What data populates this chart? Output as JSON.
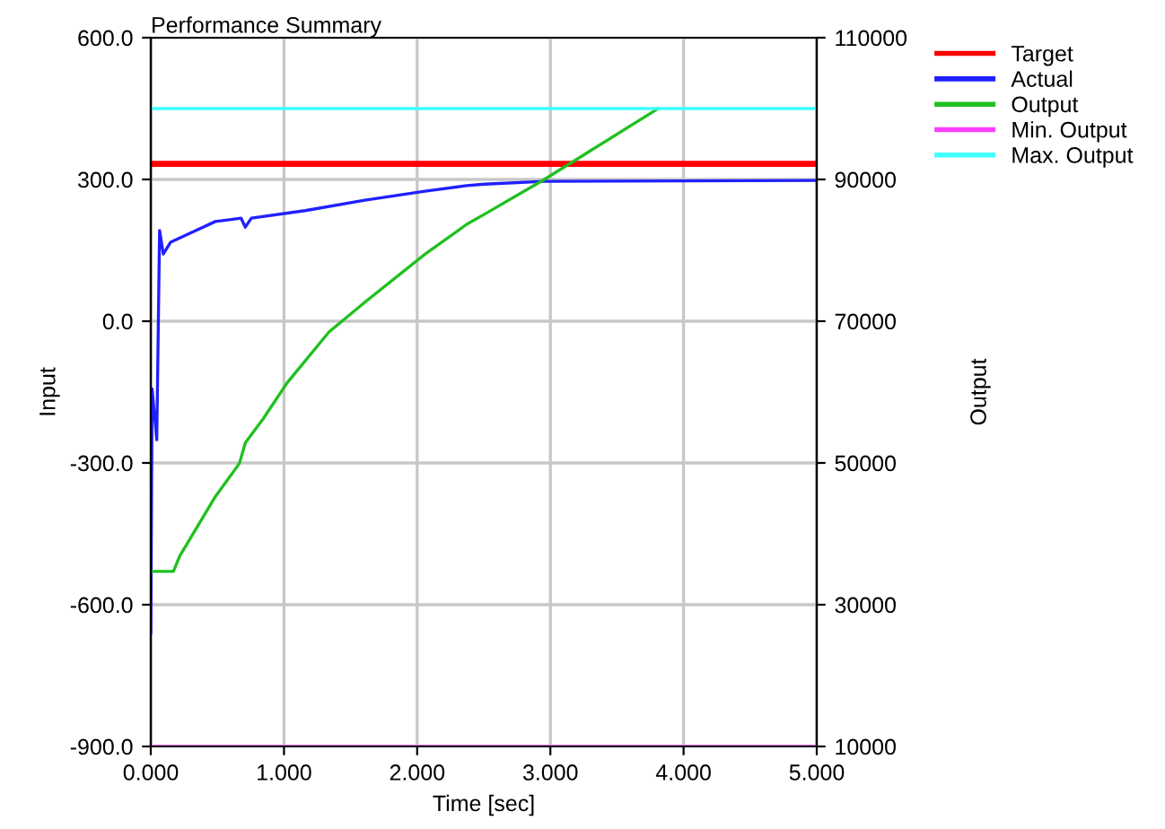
{
  "chart_data": {
    "type": "line",
    "title": "Performance Summary",
    "xlabel": "Time [sec]",
    "ylabel": "Input",
    "y2label": "Output",
    "xlim": [
      0,
      5
    ],
    "xticks": [
      {
        "value": 0,
        "label": "0.000"
      },
      {
        "value": 1,
        "label": "1.000"
      },
      {
        "value": 2,
        "label": "2.000"
      },
      {
        "value": 3,
        "label": "3.000"
      },
      {
        "value": 4,
        "label": "4.000"
      },
      {
        "value": 5,
        "label": "5.000"
      }
    ],
    "ylim": [
      -900,
      600
    ],
    "yticks": [
      {
        "value": -900,
        "label": "-900.0"
      },
      {
        "value": -600,
        "label": "-600.0"
      },
      {
        "value": -300,
        "label": "-300.0"
      },
      {
        "value": 0,
        "label": "0.0"
      },
      {
        "value": 300,
        "label": "300.0"
      },
      {
        "value": 600,
        "label": "600.0"
      }
    ],
    "y2lim": [
      10000,
      110000
    ],
    "y2ticks": [
      10000,
      30000,
      50000,
      70000,
      90000,
      110000
    ],
    "grid": true,
    "legend": "top right",
    "series": [
      {
        "name": "Target",
        "color": "#ff0000",
        "x": [
          0,
          5
        ],
        "values": [
          333,
          333
        ]
      },
      {
        "name": "Actual",
        "color": "#2020ff",
        "x": [
          0,
          0.01,
          0.045,
          0.066,
          0.094,
          0.148,
          0.485,
          0.678,
          0.71,
          0.755,
          1.159,
          1.608,
          2.058,
          2.372,
          2.507,
          2.955,
          5
        ],
        "values": [
          -660,
          -143,
          -251,
          192,
          142,
          167,
          211,
          218,
          199,
          218,
          234,
          256,
          275,
          287,
          290,
          296,
          298
        ]
      },
      {
        "name": "Output",
        "color": "#20c020",
        "axis": "y2",
        "x": [
          0,
          0.17,
          0.216,
          0.485,
          0.665,
          0.71,
          0.844,
          1.024,
          1.338,
          1.608,
          2.058,
          2.372,
          2.507,
          2.955,
          3.809
        ],
        "values": [
          34700,
          34700,
          36830,
          45260,
          49920,
          52850,
          56230,
          61310,
          68480,
          72700,
          79440,
          83670,
          85110,
          90000,
          100000
        ]
      },
      {
        "name": "Min. Output",
        "color": "#ff40ff",
        "axis": "y2",
        "x": [
          0,
          5
        ],
        "values": [
          10000,
          10000
        ]
      },
      {
        "name": "Max. Output",
        "color": "#40ffff",
        "axis": "y2",
        "x": [
          0,
          5
        ],
        "values": [
          100000,
          100000
        ]
      }
    ]
  }
}
